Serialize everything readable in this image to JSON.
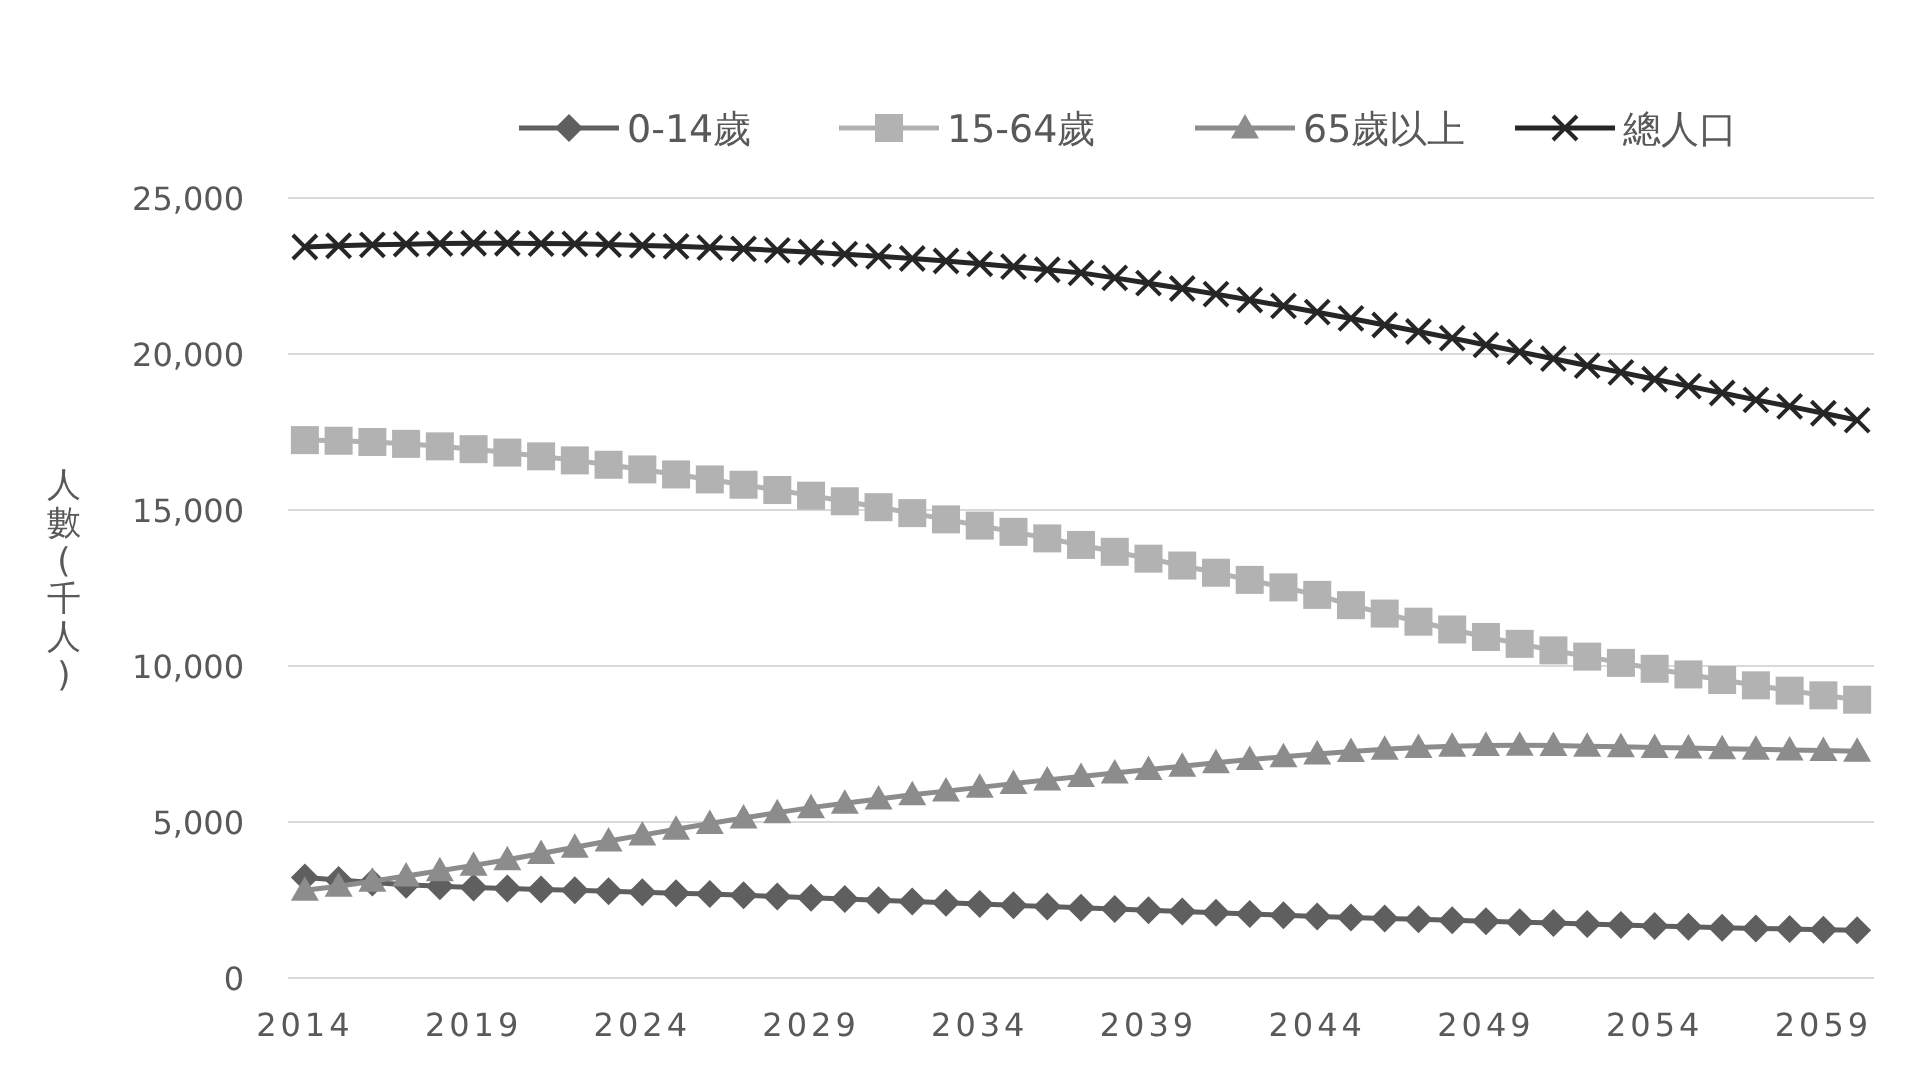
{
  "chart_data": {
    "type": "line",
    "ylabel": "人數(千人)",
    "x": [
      2014,
      2015,
      2016,
      2017,
      2018,
      2019,
      2020,
      2021,
      2022,
      2023,
      2024,
      2025,
      2026,
      2027,
      2028,
      2029,
      2030,
      2031,
      2032,
      2033,
      2034,
      2035,
      2036,
      2037,
      2038,
      2039,
      2040,
      2041,
      2042,
      2043,
      2044,
      2045,
      2046,
      2047,
      2048,
      2049,
      2050,
      2051,
      2052,
      2053,
      2054,
      2055,
      2056,
      2057,
      2058,
      2059,
      2060
    ],
    "xlim": [
      2013.5,
      2060.5
    ],
    "xticks": [
      2014,
      2019,
      2024,
      2029,
      2034,
      2039,
      2044,
      2049,
      2054,
      2059
    ],
    "ylim": [
      0,
      25000
    ],
    "yticks": [
      0,
      {
        "value": 5000,
        "label": "5,000"
      },
      {
        "value": 10000,
        "label": "10,000"
      },
      {
        "value": 15000,
        "label": "15,000"
      },
      {
        "value": 20000,
        "label": "20,000"
      },
      {
        "value": 25000,
        "label": "25,000"
      }
    ],
    "grid": "y",
    "legend": "top",
    "series": [
      {
        "name": "0-14歲",
        "color": "#5f5f5f",
        "marker": "diamond",
        "values": [
          3220,
          3140,
          3060,
          2990,
          2940,
          2900,
          2870,
          2840,
          2810,
          2780,
          2750,
          2720,
          2690,
          2650,
          2610,
          2570,
          2530,
          2490,
          2450,
          2410,
          2370,
          2330,
          2290,
          2250,
          2210,
          2170,
          2130,
          2090,
          2050,
          2010,
          1970,
          1940,
          1910,
          1880,
          1850,
          1820,
          1790,
          1760,
          1730,
          1700,
          1670,
          1640,
          1610,
          1590,
          1570,
          1550,
          1530
        ]
      },
      {
        "name": "15-64歲",
        "color": "#b2b2b2",
        "marker": "square",
        "values": [
          17240,
          17220,
          17180,
          17120,
          17040,
          16950,
          16840,
          16720,
          16590,
          16450,
          16300,
          16140,
          15980,
          15810,
          15640,
          15460,
          15280,
          15090,
          14900,
          14700,
          14500,
          14300,
          14090,
          13880,
          13660,
          13440,
          13220,
          12990,
          12760,
          12520,
          12280,
          11950,
          11680,
          11420,
          11170,
          10930,
          10710,
          10500,
          10300,
          10100,
          9910,
          9730,
          9550,
          9380,
          9210,
          9060,
          8920
        ]
      },
      {
        "name": "65歲以上",
        "color": "#8c8c8c",
        "marker": "triangle",
        "values": [
          2810,
          2940,
          3100,
          3270,
          3440,
          3610,
          3790,
          3990,
          4190,
          4390,
          4580,
          4770,
          4950,
          5130,
          5300,
          5460,
          5600,
          5740,
          5870,
          5990,
          6110,
          6230,
          6350,
          6460,
          6570,
          6680,
          6790,
          6900,
          7000,
          7090,
          7180,
          7260,
          7330,
          7390,
          7430,
          7450,
          7460,
          7450,
          7430,
          7410,
          7390,
          7370,
          7350,
          7330,
          7310,
          7290,
          7270
        ]
      },
      {
        "name": "總人口",
        "color": "#262626",
        "marker": "cross",
        "values": [
          23430,
          23470,
          23500,
          23520,
          23540,
          23550,
          23550,
          23540,
          23530,
          23510,
          23480,
          23450,
          23410,
          23370,
          23320,
          23260,
          23200,
          23130,
          23060,
          22980,
          22890,
          22800,
          22700,
          22600,
          22440,
          22270,
          22100,
          21920,
          21730,
          21540,
          21340,
          21140,
          20930,
          20720,
          20510,
          20290,
          20070,
          19850,
          19630,
          19410,
          19190,
          18970,
          18750,
          18530,
          18320,
          18100,
          17880
        ]
      }
    ]
  }
}
